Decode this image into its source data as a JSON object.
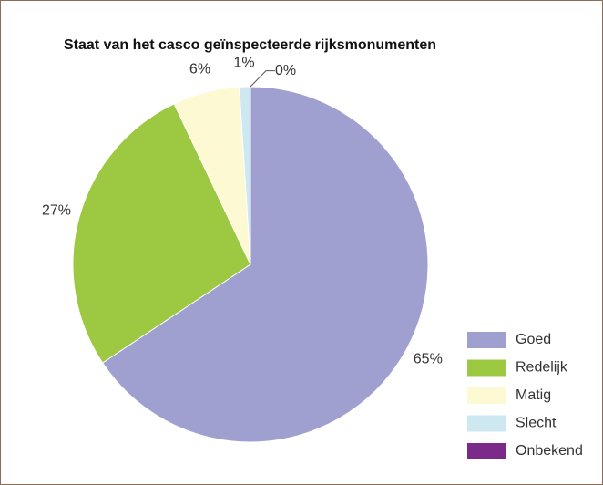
{
  "chart_data": {
    "type": "pie",
    "title": "Staat van het casco geïnspecteerde rijksmonumenten",
    "categories": [
      "Goed",
      "Redelijk",
      "Matig",
      "Slecht",
      "Onbekend"
    ],
    "values": [
      65,
      27,
      6,
      1,
      0
    ],
    "value_labels": [
      "65%",
      "27%",
      "6%",
      "1%",
      "0%"
    ],
    "colors": [
      "#9fa0d0",
      "#9dc942",
      "#fdf9d2",
      "#cde8f0",
      "#7b2a8a"
    ],
    "legend": "right"
  }
}
